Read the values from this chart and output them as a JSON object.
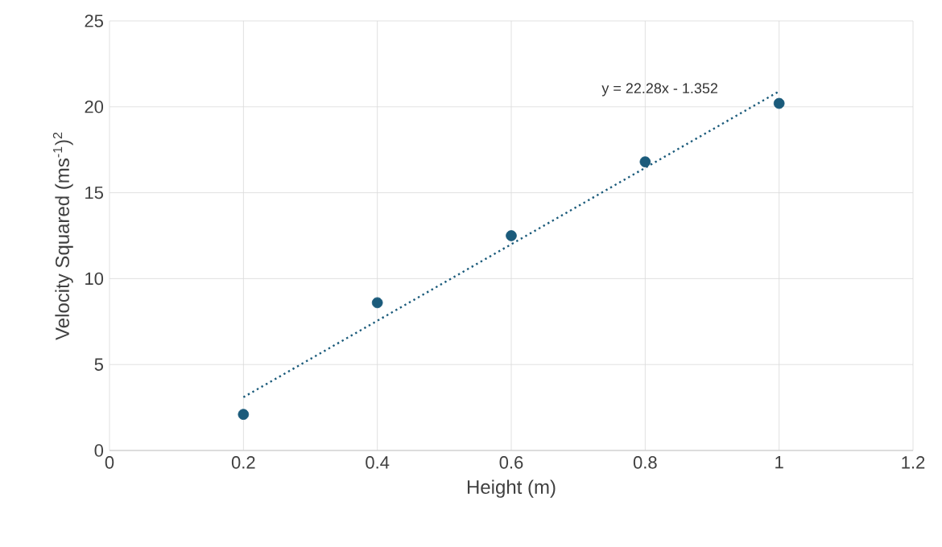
{
  "chart_data": {
    "type": "scatter",
    "xlabel": "Height (m)",
    "ylabel": "Velocity Squared (ms$^{-1}$)$^{2}$",
    "xlim": [
      0,
      1.2
    ],
    "ylim": [
      0,
      25
    ],
    "xticks": [
      0,
      0.2,
      0.4,
      0.6,
      0.8,
      1,
      1.2
    ],
    "yticks": [
      0,
      5,
      10,
      15,
      20,
      25
    ],
    "grid": true,
    "series": [
      {
        "type": "scatter",
        "color": "#1b5b7b",
        "marker": "circle",
        "x": [
          0.2,
          0.4,
          0.6,
          0.8,
          1
        ],
        "values": [
          2.1,
          8.6,
          12.5,
          16.8,
          20.2
        ]
      },
      {
        "type": "line",
        "color": "#1b5b7b",
        "marker": "none",
        "line_style": "dotted",
        "x": [
          0.2,
          1
        ],
        "values": [
          3.1,
          20.9
        ]
      }
    ],
    "annotations": [
      "y = 22.28x - 1.352"
    ]
  }
}
